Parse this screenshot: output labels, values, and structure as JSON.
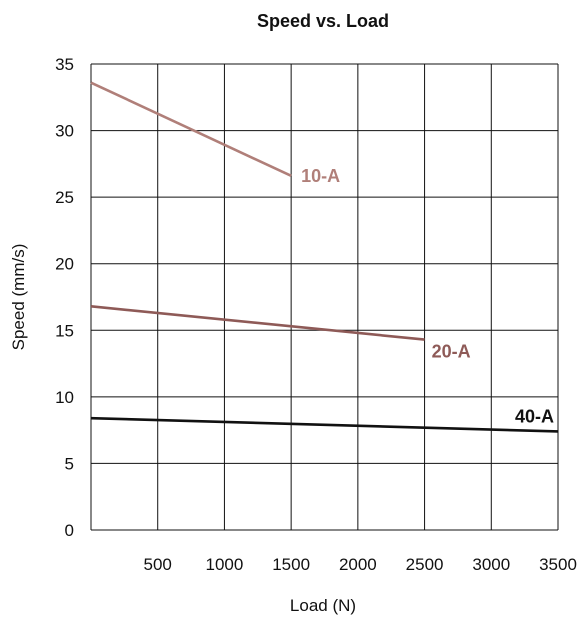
{
  "chart_data": {
    "type": "line",
    "title": "Speed vs. Load",
    "xlabel": "Load (N)",
    "ylabel": "Speed (mm/s)",
    "xlim": [
      0,
      3500
    ],
    "ylim": [
      0,
      35
    ],
    "x_ticks": [
      500,
      1000,
      1500,
      2000,
      2500,
      3000,
      3500
    ],
    "y_ticks": [
      0,
      5,
      10,
      15,
      20,
      25,
      30,
      35
    ],
    "grid": true,
    "series": [
      {
        "name": "10-A",
        "color": "#b07f79",
        "x": [
          0,
          1500
        ],
        "y": [
          33.6,
          26.6
        ]
      },
      {
        "name": "20-A",
        "color": "#8e5a57",
        "x": [
          0,
          2500
        ],
        "y": [
          16.8,
          14.3
        ]
      },
      {
        "name": "40-A",
        "color": "#111111",
        "x": [
          0,
          3500
        ],
        "y": [
          8.4,
          7.4
        ]
      }
    ]
  }
}
